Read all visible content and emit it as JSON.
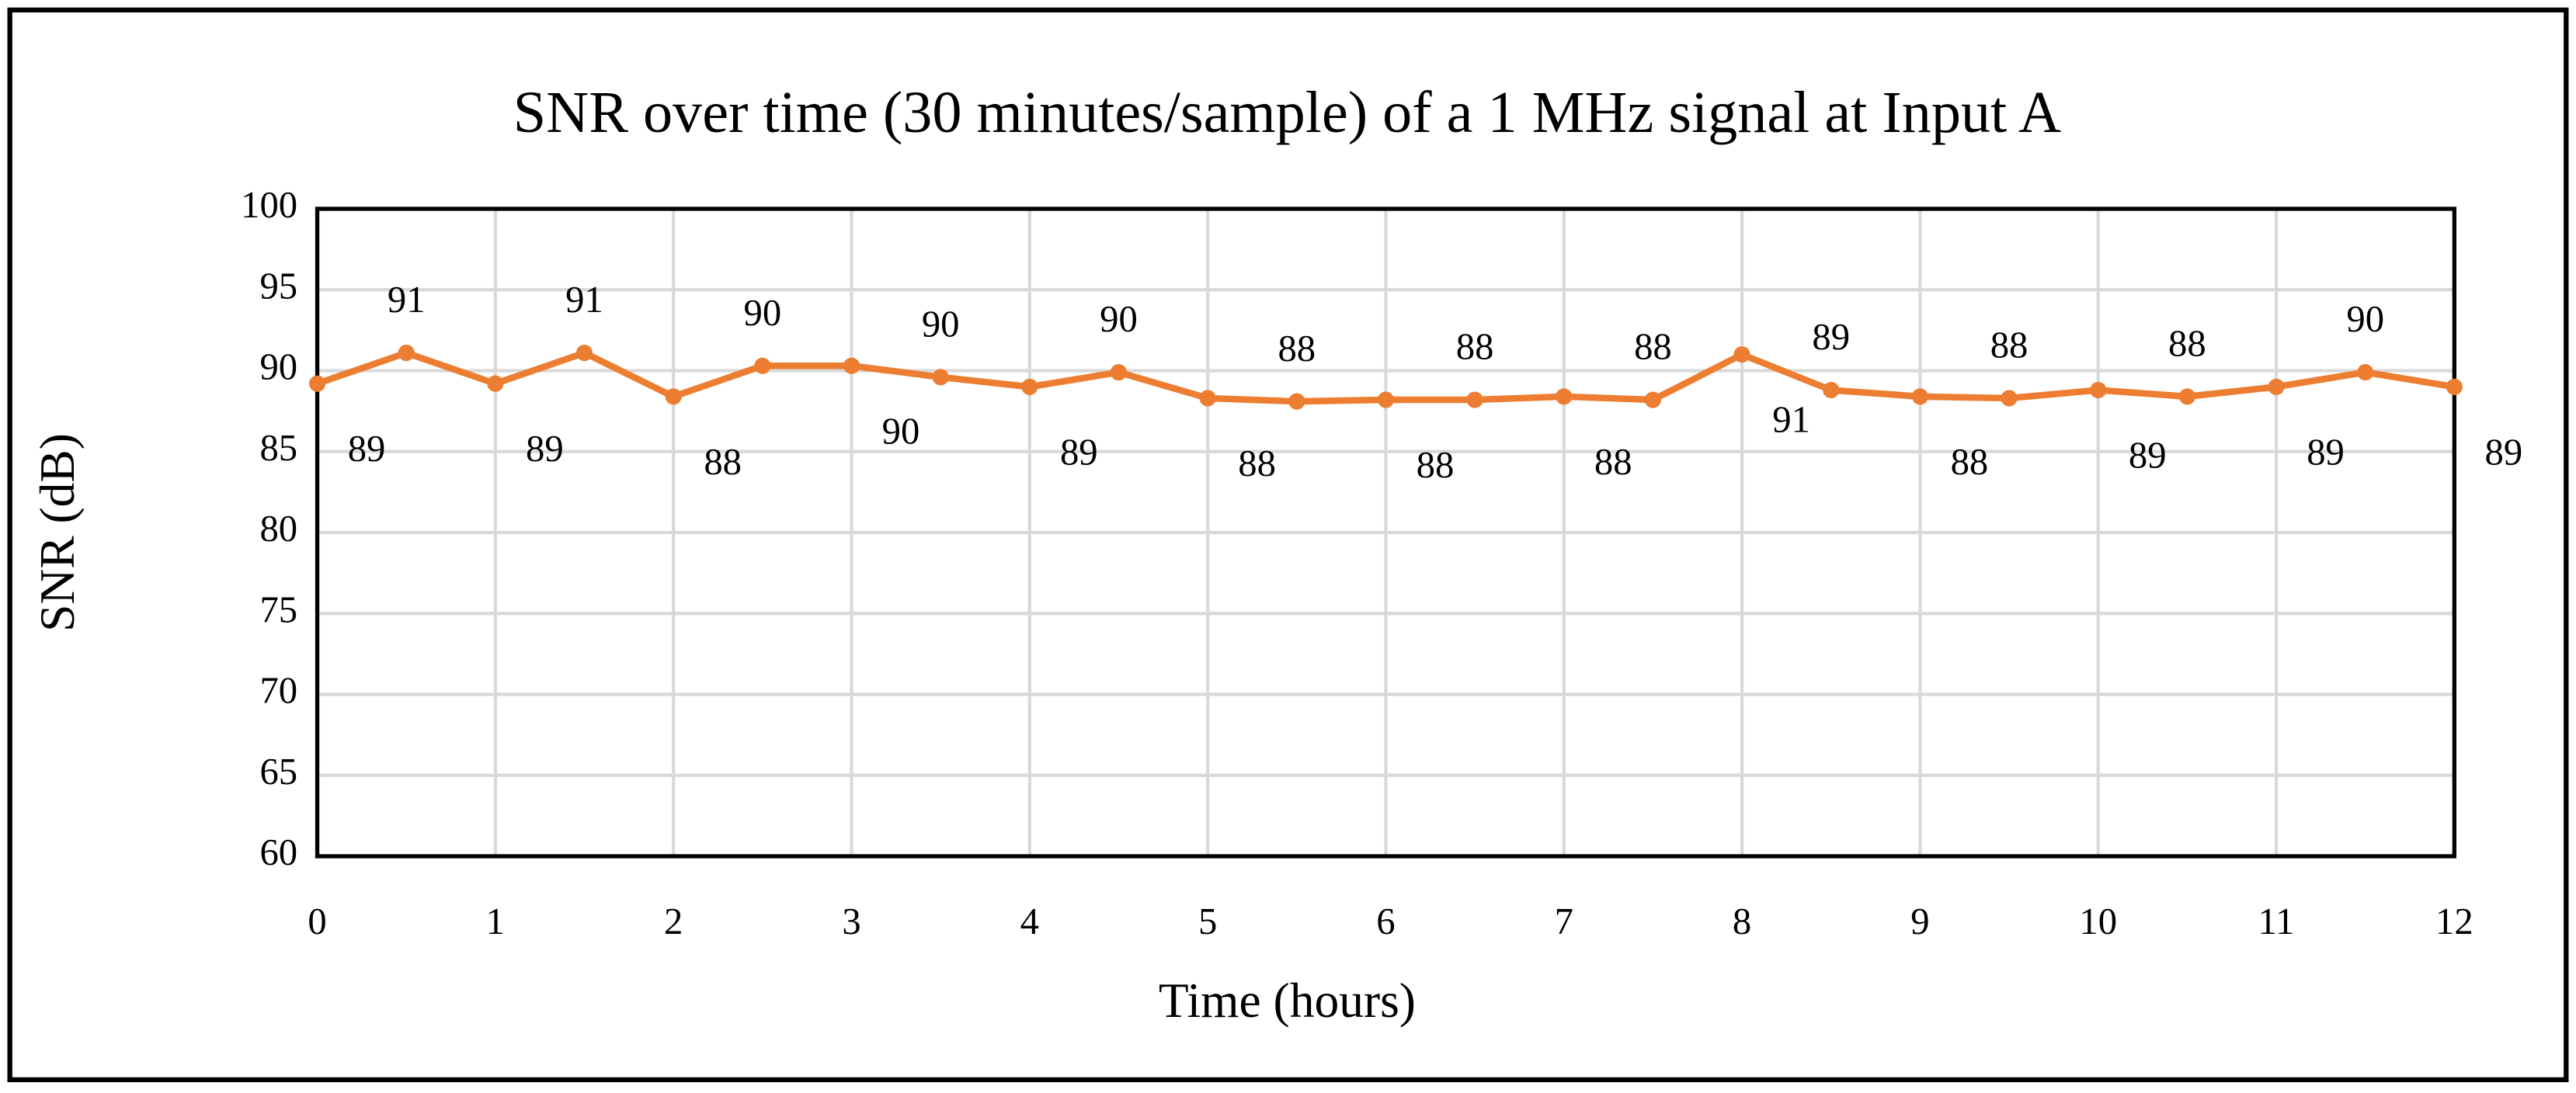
{
  "chart_data": {
    "type": "line",
    "title": "SNR over time (30 minutes/sample) of a 1 MHz signal at Input A",
    "x_label": "Time (hours)",
    "y_label": "SNR (dB)",
    "x": [
      0,
      0.5,
      1,
      1.5,
      2,
      2.5,
      3,
      3.5,
      4,
      4.5,
      5,
      5.5,
      6,
      6.5,
      7,
      7.5,
      8,
      8.5,
      9,
      9.5,
      10,
      10.5,
      11,
      11.5,
      12
    ],
    "series": [
      {
        "name": "SNR",
        "color": "#ed7d31",
        "values": [
          89.2,
          91.1,
          89.2,
          91.1,
          88.4,
          90.3,
          90.3,
          89.6,
          89.0,
          89.9,
          88.3,
          88.1,
          88.2,
          88.2,
          88.4,
          88.2,
          91.0,
          88.8,
          88.4,
          88.3,
          88.8,
          88.4,
          89.0,
          89.9,
          89.0
        ],
        "value_labels": [
          "89",
          "91",
          "89",
          "91",
          "88",
          "90",
          "90",
          "90",
          "89",
          "90",
          "88",
          "88",
          "88",
          "88",
          "88",
          "88",
          "91",
          "89",
          "88",
          "88",
          "89",
          "88",
          "89",
          "90",
          "89"
        ]
      }
    ],
    "xlim": [
      0,
      12
    ],
    "xticks": [
      0,
      1,
      2,
      3,
      4,
      5,
      6,
      7,
      8,
      9,
      10,
      11,
      12
    ],
    "ylim": [
      60,
      100
    ],
    "yticks": [
      60,
      65,
      70,
      75,
      80,
      85,
      90,
      95,
      100
    ],
    "grid": true
  }
}
